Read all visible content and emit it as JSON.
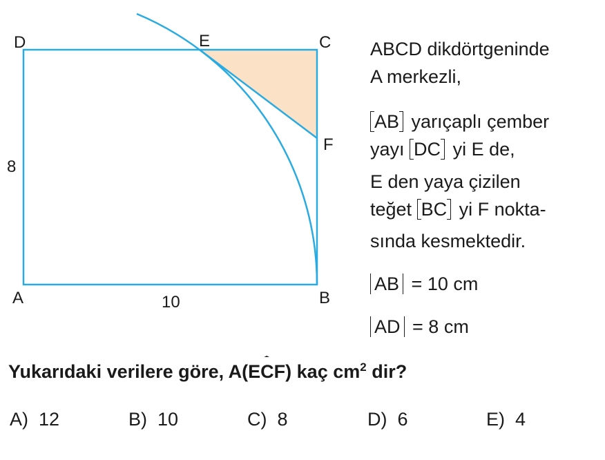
{
  "figure": {
    "vertices": {
      "A": "A",
      "B": "B",
      "C": "C",
      "D": "D",
      "E": "E",
      "F": "F"
    },
    "side_labels": {
      "AD": "8",
      "AB": "10"
    },
    "colors": {
      "line": "#29abe2",
      "shaded": "#fbe2c6"
    }
  },
  "statement": {
    "line1": "ABCD  dikdörtgeninde",
    "line2": "A merkezli,",
    "line3_bracket": "AB",
    "line3_rest": "yarıçaplı çember",
    "line4_pre": "yayı",
    "line4_bracket": "DC",
    "line4_rest": "yi E de,",
    "line5": "E den yaya çizilen",
    "line6_pre": "teğet",
    "line6_bracket": "BC",
    "line6_rest": "yi F nokta-",
    "line7": "sında kesmektedir.",
    "given1_abs": "AB",
    "given1_rest": "= 10 cm",
    "given2_abs": "AD",
    "given2_rest": "= 8 cm"
  },
  "question": {
    "pre": "Yukarıdaki verilere göre, A(",
    "arc": "ECF",
    "post": ") kaç cm",
    "sup": "2",
    "end": " dir?"
  },
  "options": [
    {
      "label": "A)",
      "value": "12"
    },
    {
      "label": "B)",
      "value": "10"
    },
    {
      "label": "C)",
      "value": "8"
    },
    {
      "label": "D)",
      "value": "6"
    },
    {
      "label": "E)",
      "value": "4"
    }
  ]
}
